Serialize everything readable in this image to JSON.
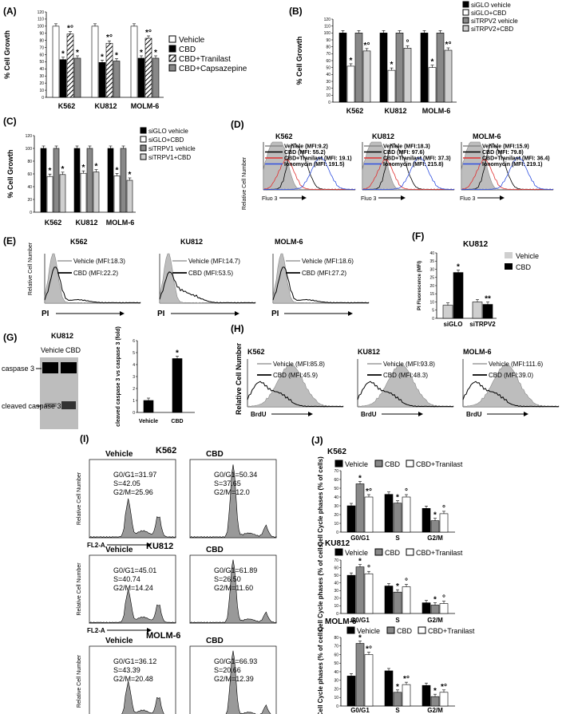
{
  "panels": {
    "A": "(A)",
    "B": "(B)",
    "C": "(C)",
    "D": "(D)",
    "E": "(E)",
    "F": "(F)",
    "G": "(G)",
    "H": "(H)",
    "I": "(I)",
    "J": "(J)"
  },
  "colors": {
    "black": "#000000",
    "white": "#ffffff",
    "grey": "#888888",
    "lightgrey": "#cfcfcf",
    "red": "#e03030",
    "blue": "#3050e0",
    "fill": "#bdbdbd"
  },
  "cells": [
    "K562",
    "KU812",
    "MOLM-6"
  ],
  "common": {
    "pct_growth": "% Cell Growth",
    "rel_cell": "Relative Cell Number",
    "fluo3": "Fluo 3",
    "pi": "PI",
    "brdu": "BrdU",
    "fl2a": "FL2-A",
    "vehicle": "Vehicle",
    "cbd": "CBD"
  },
  "chart_data": [
    {
      "id": "A",
      "type": "bar",
      "ylabel": "% Cell Growth",
      "ylim": [
        0,
        120
      ],
      "yticks": [
        0,
        10,
        20,
        30,
        40,
        50,
        60,
        70,
        80,
        90,
        100,
        110,
        120
      ],
      "categories": [
        "K562",
        "KU812",
        "MOLM-6"
      ],
      "series": [
        {
          "name": "Vehicle",
          "values": [
            100,
            100,
            100
          ]
        },
        {
          "name": "CBD",
          "values": [
            53,
            49,
            55
          ]
        },
        {
          "name": "CBD+Tranilast",
          "values": [
            89,
            76,
            83
          ]
        },
        {
          "name": "CBD+Capsazepine",
          "values": [
            55,
            51,
            55
          ]
        }
      ],
      "sig": [
        [
          "",
          "*",
          "*°",
          "*"
        ],
        [
          "",
          "*",
          "*°",
          "*"
        ],
        [
          "",
          "*",
          "*°",
          "*"
        ]
      ]
    },
    {
      "id": "B",
      "type": "bar",
      "ylabel": "% Cell Growth",
      "ylim": [
        0,
        120
      ],
      "yticks": [
        0,
        10,
        20,
        30,
        40,
        50,
        60,
        70,
        80,
        90,
        100,
        110,
        120
      ],
      "categories": [
        "K562",
        "KU812",
        "MOLM-6"
      ],
      "series": [
        {
          "name": "siGLO vehicle",
          "values": [
            100,
            100,
            100
          ]
        },
        {
          "name": "siGLO+CBD",
          "values": [
            52,
            46,
            50
          ]
        },
        {
          "name": "siTRPV2 vehicle",
          "values": [
            100,
            100,
            100
          ]
        },
        {
          "name": "siTRPV2+CBD",
          "values": [
            74,
            78,
            75
          ]
        }
      ],
      "sig": [
        [
          "",
          "*",
          "",
          "*°"
        ],
        [
          "",
          "*",
          "",
          "°"
        ],
        [
          "",
          "*",
          "",
          "*°"
        ]
      ]
    },
    {
      "id": "C",
      "type": "bar",
      "ylabel": "% Cell Growth",
      "ylim": [
        0,
        120
      ],
      "yticks": [
        0,
        20,
        40,
        60,
        80,
        100,
        120
      ],
      "categories": [
        "K562",
        "KU812",
        "MOLM-6"
      ],
      "series": [
        {
          "name": "siGLO vehicle",
          "values": [
            100,
            100,
            100
          ]
        },
        {
          "name": "siGLO+CBD",
          "values": [
            56,
            61,
            57
          ]
        },
        {
          "name": "siTRPV1 vehicle",
          "values": [
            100,
            100,
            100
          ]
        },
        {
          "name": "siTRPV1+CBD",
          "values": [
            59,
            63,
            50
          ]
        }
      ],
      "sig": [
        [
          "",
          "*",
          "",
          "*"
        ],
        [
          "",
          "*",
          "",
          "*"
        ],
        [
          "",
          "*",
          "",
          "*"
        ]
      ]
    },
    {
      "id": "F",
      "type": "bar",
      "title": "KU812",
      "ylabel": "PI Fluorescence (MFI)",
      "ylim": [
        0,
        40
      ],
      "yticks": [
        0,
        5,
        10,
        15,
        20,
        25,
        30,
        35,
        40
      ],
      "categories": [
        "siGLO",
        "siTRPV2"
      ],
      "series": [
        {
          "name": "Vehicle",
          "values": [
            8,
            10
          ]
        },
        {
          "name": "CBD",
          "values": [
            28,
            8.5
          ]
        }
      ],
      "sig": [
        [
          "",
          "*"
        ],
        [
          "",
          "**"
        ]
      ]
    },
    {
      "id": "G",
      "type": "bar",
      "ylabel": "cleaved caspase 3 vs caspase 3 (fold)",
      "ylim": [
        0,
        6
      ],
      "yticks": [
        0,
        1,
        2,
        3,
        4,
        5,
        6
      ],
      "categories": [
        "Vehicle",
        "CBD"
      ],
      "values": [
        1,
        4.5
      ],
      "sig": [
        "",
        "*"
      ]
    },
    {
      "id": "J1",
      "type": "bar",
      "title": "K562",
      "ylabel": "Cell Cycle phases (% of cells)",
      "ylim": [
        0,
        70
      ],
      "yticks": [
        0,
        10,
        20,
        30,
        40,
        50,
        60,
        70
      ],
      "categories": [
        "G0/G1",
        "S",
        "G2/M"
      ],
      "series": [
        {
          "name": "Vehicle",
          "values": [
            30,
            43,
            27
          ]
        },
        {
          "name": "CBD",
          "values": [
            55,
            33,
            13
          ]
        },
        {
          "name": "CBD+Tranilast",
          "values": [
            40,
            40,
            21
          ]
        }
      ],
      "sig": [
        [
          "",
          "*",
          "*°"
        ],
        [
          "",
          "*",
          "°"
        ],
        [
          "",
          "*",
          "°"
        ]
      ]
    },
    {
      "id": "J2",
      "type": "bar",
      "title": "KU812",
      "ylabel": "Cell Cycle phases (% of cells)",
      "ylim": [
        0,
        70
      ],
      "yticks": [
        0,
        10,
        20,
        30,
        40,
        50,
        60,
        70
      ],
      "categories": [
        "G0/G1",
        "S",
        "G2/M"
      ],
      "series": [
        {
          "name": "Vehicle",
          "values": [
            50,
            36,
            14
          ]
        },
        {
          "name": "CBD",
          "values": [
            61,
            28,
            11
          ]
        },
        {
          "name": "CBD+Tranilast",
          "values": [
            52,
            35,
            13
          ]
        }
      ],
      "sig": [
        [
          "",
          "*",
          "°"
        ],
        [
          "",
          "*",
          "°"
        ],
        [
          "",
          "*",
          "°"
        ]
      ]
    },
    {
      "id": "J3",
      "type": "bar",
      "title": "MOLM-6",
      "ylabel": "Cell Cycle phases (% of cells)",
      "ylim": [
        0,
        80
      ],
      "yticks": [
        0,
        10,
        20,
        30,
        40,
        50,
        60,
        70,
        80
      ],
      "categories": [
        "G0/G1",
        "S",
        "G2/M"
      ],
      "series": [
        {
          "name": "Vehicle",
          "values": [
            35,
            41,
            24
          ]
        },
        {
          "name": "CBD",
          "values": [
            73,
            16,
            11
          ]
        },
        {
          "name": "CBD+Tranilast",
          "values": [
            60,
            25,
            16
          ]
        }
      ],
      "sig": [
        [
          "",
          "*",
          "*°"
        ],
        [
          "",
          "*",
          "*°"
        ],
        [
          "",
          "*",
          "*°"
        ]
      ]
    }
  ],
  "panel_d": {
    "legends": [
      [
        "Vehicle (MFI:9.2)",
        "CBD (MFI: 55.2)",
        "CBD+Tranilast (MFI: 19.1)",
        "Ionomycin (MFI: 191.5)"
      ],
      [
        "Vehicle (MFI:18.3)",
        "CBD (MFI: 97.6)",
        "CBD+Tranilast (MFI: 37.3)",
        "Ionomycin (MFI: 215.8)"
      ],
      [
        "Vehicle (MFI:15.9)",
        "CBD (MFI: 79.8)",
        "CBD+Tranilast (MFI: 36.4)",
        "Ionomycin (MFI: 219.1)"
      ]
    ]
  },
  "panel_e": {
    "legends": [
      [
        "Vehicle (MFI:18.3)",
        "CBD (MFI:22.2)"
      ],
      [
        "Vehicle (MFI:14.7)",
        "CBD (MFI:53.5)"
      ],
      [
        "Vehicle (MFI:18.6)",
        "CBD (MFI:27.2)"
      ]
    ]
  },
  "panel_g": {
    "title": "KU812",
    "lane1": "Vehicle",
    "lane2": "CBD",
    "band1": "caspase 3",
    "band2": "cleaved caspase 3"
  },
  "panel_h": {
    "legends": [
      [
        "Vehicle (MFI:85.8)",
        "CBD (MFI:45.9)"
      ],
      [
        "Vehicle (MFI:93.8)",
        "CBD (MFI:48.3)"
      ],
      [
        "Vehicle (MFI:111.6)",
        "CBD (MFI:39.0)"
      ]
    ]
  },
  "panel_i": [
    {
      "cell": "K562",
      "v": [
        "G0/G1=31.97",
        "S=42.05",
        "G2/M=25.96"
      ],
      "c": [
        "G0/G1=50.34",
        "S=37.65",
        "G2/M=12.0"
      ]
    },
    {
      "cell": "KU812",
      "v": [
        "G0/G1=45.01",
        "S=40.74",
        "G2/M=14.24"
      ],
      "c": [
        "G0/G1=61.89",
        "S=26.50",
        "G2/M=11.60"
      ]
    },
    {
      "cell": "MOLM-6",
      "v": [
        "G0/G1=36.12",
        "S=43.39",
        "G2/M=20.48"
      ],
      "c": [
        "G0/G1=66.93",
        "S=20.66",
        "G2/M=12.39"
      ]
    }
  ]
}
